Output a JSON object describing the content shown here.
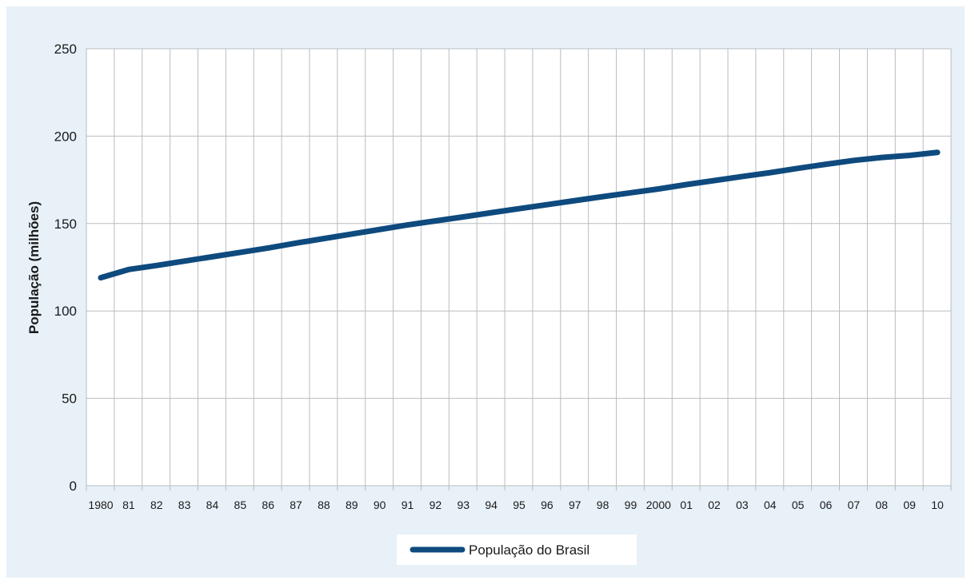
{
  "colors": {
    "panel_background": "#e8f1f8",
    "plot_background": "#ffffff",
    "gridline": "#b9bcc0",
    "line": "#0e4a7e",
    "text": "#1a1a1a"
  },
  "chart_data": {
    "type": "line",
    "title": "",
    "xlabel": "",
    "ylabel": "População (milhões)",
    "ylim": [
      0,
      250
    ],
    "y_ticks": [
      0,
      50,
      100,
      150,
      200,
      250
    ],
    "categories": [
      "1980",
      "81",
      "82",
      "83",
      "84",
      "85",
      "86",
      "87",
      "88",
      "89",
      "90",
      "91",
      "92",
      "93",
      "94",
      "95",
      "96",
      "97",
      "98",
      "99",
      "2000",
      "01",
      "02",
      "03",
      "04",
      "05",
      "06",
      "07",
      "08",
      "09",
      "10"
    ],
    "grid": true,
    "legend_position": "bottom-center",
    "series": [
      {
        "name": "População do Brasil",
        "values": [
          119.0,
          123.7,
          126.0,
          128.5,
          131.0,
          133.5,
          136.0,
          138.8,
          141.4,
          144.0,
          146.6,
          149.2,
          151.5,
          153.8,
          156.2,
          158.5,
          160.8,
          163.1,
          165.4,
          167.6,
          169.8,
          172.3,
          174.6,
          176.9,
          179.1,
          181.6,
          183.9,
          186.1,
          187.8,
          189.0,
          190.7
        ]
      }
    ]
  }
}
